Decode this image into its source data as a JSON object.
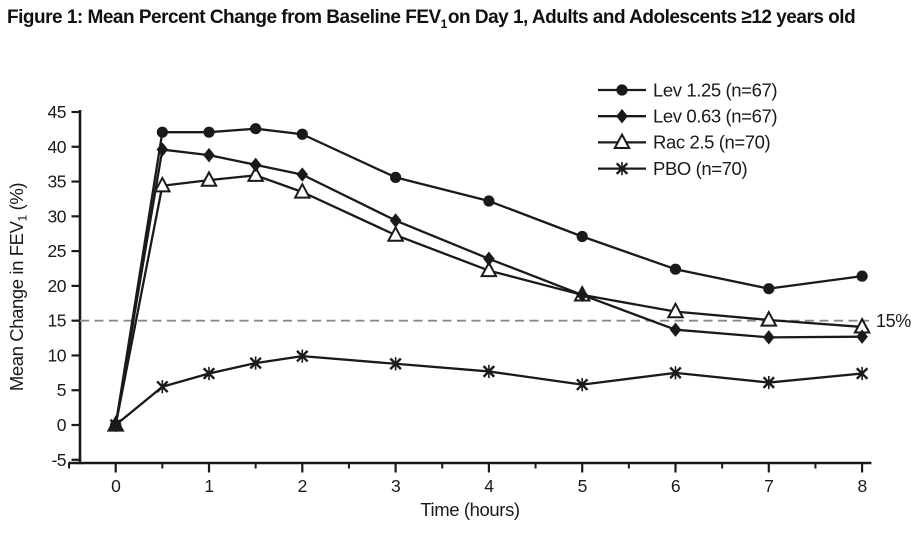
{
  "figure": {
    "title": {
      "prefix": "Figure 1: Mean Percent Change from Baseline FEV",
      "subscript": "1",
      "suffix": "on Day 1, Adults and Adolescents ≥12 years old"
    }
  },
  "chart_data": {
    "type": "line",
    "title": "Figure 1: Mean Percent Change from Baseline FEV1 on Day 1, Adults and Adolescents ≥12 years old",
    "xlabel": "Time (hours)",
    "ylabel": "Mean Change in FEV1 (%)",
    "ylabel_parts": {
      "main": "Mean Change in FEV",
      "sub": "1",
      "rest": " (%)"
    },
    "x": [
      0,
      0.5,
      1,
      1.5,
      2,
      3,
      4,
      5,
      6,
      7,
      8
    ],
    "series": [
      {
        "name": "Lev 1.25 (n=67)",
        "marker": "filled-circle",
        "values": [
          0,
          42.1,
          42.1,
          42.6,
          41.8,
          35.6,
          32.2,
          27.1,
          22.4,
          19.6,
          21.4
        ]
      },
      {
        "name": "Lev 0.63 (n=67)",
        "marker": "filled-diamond",
        "values": [
          0,
          39.6,
          38.8,
          37.4,
          36.0,
          29.4,
          23.9,
          18.7,
          13.7,
          12.6,
          12.7
        ]
      },
      {
        "name": "Rac 2.5 (n=70)",
        "marker": "open-triangle",
        "values": [
          0,
          34.4,
          35.2,
          35.9,
          33.5,
          27.3,
          22.2,
          18.7,
          16.3,
          15.1,
          14.1
        ]
      },
      {
        "name": "PBO (n=70)",
        "marker": "x-star",
        "values": [
          0,
          5.5,
          7.4,
          8.9,
          9.9,
          8.8,
          7.7,
          5.8,
          7.5,
          6.1,
          7.4
        ]
      }
    ],
    "xticks": [
      0,
      1,
      2,
      3,
      4,
      5,
      6,
      7,
      8
    ],
    "yticks": [
      45,
      40,
      35,
      30,
      25,
      20,
      15,
      10,
      5,
      0,
      -5
    ],
    "xlim": [
      -0.5,
      8.1
    ],
    "ylim": [
      -5.5,
      45
    ],
    "grid": false,
    "legend_position": "top-right",
    "reference_line": {
      "y": 15,
      "label": "15%",
      "style": "dashed",
      "color": "#8a8a8a"
    },
    "line_color": "#1a1a1a"
  },
  "colors": {
    "background": "#ffffff",
    "ink": "#1a1a1a",
    "dashed_line": "#8a8a8a"
  }
}
